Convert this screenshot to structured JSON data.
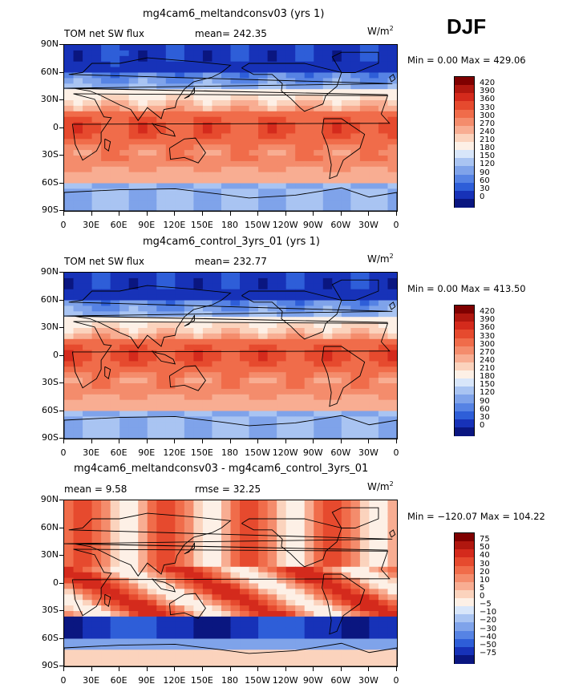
{
  "season": "DJF",
  "units_base": "W/m",
  "units_exp": "2",
  "panels": [
    {
      "id": "p1",
      "title": "mg4cam6_meltandconsv03 (yrs 1)",
      "left_label": "TOM net SW flux",
      "mean_label": "mean= 242.35",
      "minmax": "Min =    0.00 Max = 429.06",
      "colorbar_labels": [
        "420",
        "390",
        "360",
        "330",
        "300",
        "270",
        "240",
        "210",
        "180",
        "150",
        "120",
        "90",
        "60",
        "30",
        "0"
      ],
      "colorbar_colors": [
        "#7f0000",
        "#b0170f",
        "#d42a1c",
        "#e64a2e",
        "#f06c4a",
        "#f48c6c",
        "#f8ad92",
        "#fbd3bd",
        "#fdf0e6",
        "#d8e6fa",
        "#a9c4f2",
        "#7fa3ea",
        "#5683e4",
        "#2e5ed8",
        "#1732b8",
        "#0a1680"
      ],
      "map_type": "absolute"
    },
    {
      "id": "p2",
      "title": "mg4cam6_control_3yrs_01 (yrs 1)",
      "left_label": "TOM net SW flux",
      "mean_label": "mean= 232.77",
      "minmax": "Min =    0.00 Max = 413.50",
      "colorbar_labels": [
        "420",
        "390",
        "360",
        "330",
        "300",
        "270",
        "240",
        "210",
        "180",
        "150",
        "120",
        "90",
        "60",
        "30",
        "0"
      ],
      "colorbar_colors": [
        "#7f0000",
        "#b0170f",
        "#d42a1c",
        "#e64a2e",
        "#f06c4a",
        "#f48c6c",
        "#f8ad92",
        "#fbd3bd",
        "#fdf0e6",
        "#d8e6fa",
        "#a9c4f2",
        "#7fa3ea",
        "#5683e4",
        "#2e5ed8",
        "#1732b8",
        "#0a1680"
      ],
      "map_type": "absolute"
    },
    {
      "id": "p3",
      "title": "mg4cam6_meltandconsv03 - mg4cam6_control_3yrs_01",
      "left_label": "mean =    9.58",
      "mean_label": "rmse =   32.25",
      "minmax": "Min = −120.07 Max = 104.22",
      "colorbar_labels": [
        "75",
        "50",
        "40",
        "30",
        "20",
        "10",
        "5",
        "0",
        "−5",
        "−10",
        "−20",
        "−30",
        "−40",
        "−50",
        "−75"
      ],
      "colorbar_colors": [
        "#7f0000",
        "#b0170f",
        "#d42a1c",
        "#e64a2e",
        "#f06c4a",
        "#f48c6c",
        "#f8ad92",
        "#fbd3bd",
        "#fdf0e6",
        "#d8e6fa",
        "#a9c4f2",
        "#7fa3ea",
        "#5683e4",
        "#2e5ed8",
        "#1732b8",
        "#0a1680"
      ],
      "map_type": "difference"
    }
  ],
  "chart_data": {
    "type": "heatmap",
    "projection": "cylindrical equidistant",
    "x_tick_labels": [
      "0",
      "30E",
      "60E",
      "90E",
      "120E",
      "150E",
      "180",
      "150W",
      "120W",
      "90W",
      "60W",
      "30W",
      "0"
    ],
    "y_tick_labels": [
      "90N",
      "60N",
      "30N",
      "0",
      "30S",
      "60S",
      "90S"
    ],
    "x_range": [
      0,
      360
    ],
    "y_range": [
      -90,
      90
    ],
    "panels": [
      {
        "title": "mg4cam6_meltandconsv03 (yrs 1)",
        "variable": "TOM net SW flux",
        "mean": 242.35,
        "min": 0.0,
        "max": 429.06,
        "levels": [
          0,
          30,
          60,
          90,
          120,
          150,
          180,
          210,
          240,
          270,
          300,
          330,
          360,
          390,
          420
        ]
      },
      {
        "title": "mg4cam6_control_3yrs_01 (yrs 1)",
        "variable": "TOM net SW flux",
        "mean": 232.77,
        "min": 0.0,
        "max": 413.5,
        "levels": [
          0,
          30,
          60,
          90,
          120,
          150,
          180,
          210,
          240,
          270,
          300,
          330,
          360,
          390,
          420
        ]
      },
      {
        "title": "mg4cam6_meltandconsv03 - mg4cam6_control_3yrs_01",
        "mean": 9.58,
        "rmse": 32.25,
        "min": -120.07,
        "max": 104.22,
        "levels": [
          -75,
          -50,
          -40,
          -30,
          -20,
          -10,
          -5,
          0,
          5,
          10,
          20,
          30,
          40,
          50,
          75
        ]
      }
    ]
  }
}
